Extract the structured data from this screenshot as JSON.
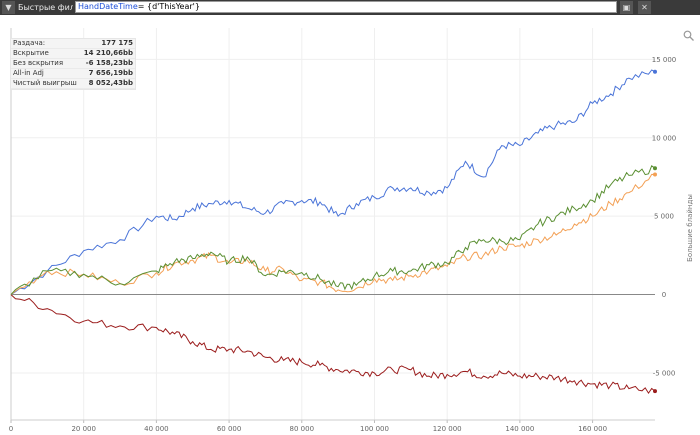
{
  "toolbar": {
    "filter_icon": "funnel-icon",
    "label": "Быстрые фильт",
    "filter_field": "HandDateTime",
    "filter_rest": "= {d'ThisYear'}",
    "save_icon": "save-icon",
    "close_icon": "close-icon"
  },
  "stats": [
    {
      "label": "Раздача:",
      "value": "177 175"
    },
    {
      "label": "Вскрытие",
      "value": "14 210,66bb"
    },
    {
      "label": "Без вскрытия",
      "value": "-6 158,23bb"
    },
    {
      "label": "All-in Adj",
      "value": "7 656,19bb"
    },
    {
      "label": "Чистый выигрыш",
      "value": "8 052,43bb"
    }
  ],
  "colors": {
    "showdown": "#4a74d8",
    "non_showdown": "#9b1d1d",
    "allin_adj": "#f3a055",
    "net_won": "#5a8f32"
  },
  "chart_data": {
    "type": "line",
    "ylabel": "Большие блайнды",
    "xlim": [
      0,
      177175
    ],
    "ylim": [
      -8000,
      17000
    ],
    "x_ticks": [
      "0",
      "20 000",
      "40 000",
      "60 000",
      "80 000",
      "100 000",
      "120 000",
      "140 000",
      "160 000"
    ],
    "y_ticks": [
      "-5 000",
      "0",
      "5 000",
      "10 000",
      "15 000"
    ],
    "grid": true,
    "x": [
      0,
      10000,
      20000,
      30000,
      40000,
      45000,
      50000,
      55000,
      60000,
      65000,
      70000,
      75000,
      80000,
      85000,
      90000,
      95000,
      100000,
      105000,
      110000,
      115000,
      120000,
      125000,
      130000,
      135000,
      140000,
      145000,
      150000,
      155000,
      160000,
      165000,
      170000,
      177175
    ],
    "series": [
      {
        "key": "showdown",
        "values": [
          0,
          1500,
          2800,
          3500,
          5000,
          4800,
          5500,
          5800,
          6000,
          5500,
          5200,
          5800,
          6000,
          5900,
          5000,
          5800,
          6200,
          6800,
          6800,
          6500,
          6800,
          8500,
          7500,
          9500,
          9500,
          10300,
          10800,
          11000,
          12200,
          12800,
          13800,
          14210
        ]
      },
      {
        "key": "non_showdown",
        "values": [
          0,
          -900,
          -1700,
          -2000,
          -2100,
          -2500,
          -3000,
          -3500,
          -3500,
          -3600,
          -4000,
          -4200,
          -4300,
          -4500,
          -4800,
          -4900,
          -5000,
          -4800,
          -4800,
          -5200,
          -5100,
          -4900,
          -5200,
          -5000,
          -5200,
          -5200,
          -5300,
          -5500,
          -5700,
          -5800,
          -6000,
          -6158
        ]
      },
      {
        "key": "allin_adj",
        "values": [
          0,
          1500,
          1300,
          700,
          1400,
          2000,
          2200,
          2500,
          2000,
          2200,
          1500,
          1600,
          900,
          800,
          300,
          400,
          1000,
          900,
          1200,
          1500,
          1800,
          2400,
          2500,
          3000,
          3100,
          3500,
          3800,
          4500,
          5000,
          5800,
          6500,
          7656
        ]
      },
      {
        "key": "net_won",
        "values": [
          0,
          1500,
          1300,
          700,
          1500,
          2100,
          2300,
          2700,
          2100,
          2400,
          1200,
          1500,
          1400,
          1000,
          500,
          600,
          1200,
          1500,
          1500,
          1900,
          2000,
          3000,
          3500,
          3400,
          3500,
          4500,
          5000,
          5500,
          6000,
          7000,
          7600,
          8052
        ]
      }
    ]
  }
}
